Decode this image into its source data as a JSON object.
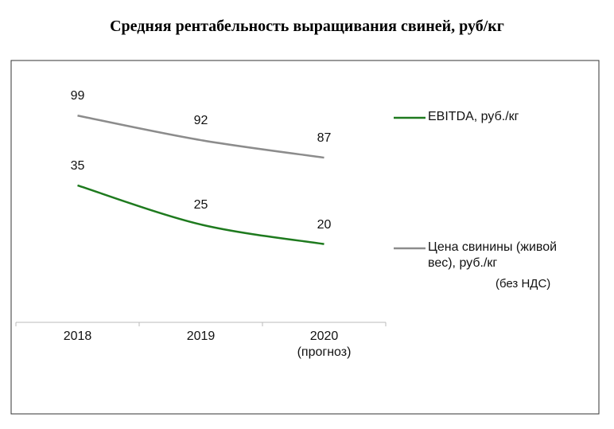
{
  "chart_data": {
    "type": "line",
    "title": "Средняя рентабельность выращивания свиней, руб/кг",
    "categories": [
      "2018",
      "2019",
      "2020\n(прогноз)"
    ],
    "series": [
      {
        "name": "EBITDA, руб./кг",
        "color": "#1e7a1e",
        "values": [
          35,
          25,
          20
        ]
      },
      {
        "name": "Цена свинины (живой вес), руб./кг",
        "color": "#8c8c8c",
        "values": [
          99,
          92,
          87
        ],
        "axis": "y2"
      }
    ],
    "legend_note": "(без НДС)",
    "ylim": [
      0,
      60
    ],
    "y2lim": [
      40,
      107
    ],
    "smooth": true
  }
}
